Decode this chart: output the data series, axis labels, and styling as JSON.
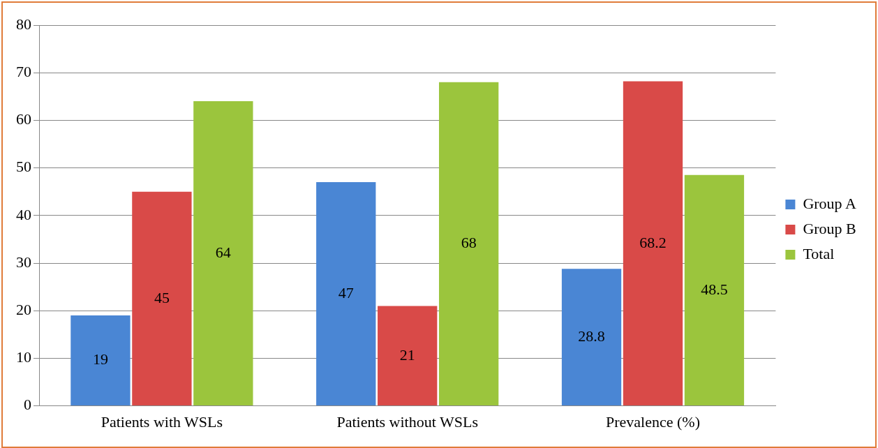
{
  "chart_data": {
    "type": "bar",
    "categories": [
      "Patients with WSLs",
      "Patients without WSLs",
      "Prevalence (%)"
    ],
    "series": [
      {
        "name": "Group A",
        "color": "#4a86d4",
        "values": [
          19,
          47,
          28.8
        ]
      },
      {
        "name": "Group B",
        "color": "#d94a48",
        "values": [
          45,
          21,
          68.2
        ]
      },
      {
        "name": "Total",
        "color": "#9bc53d",
        "values": [
          64,
          68,
          48.5
        ]
      }
    ],
    "ylim": [
      0,
      80
    ],
    "yticks": [
      0,
      10,
      20,
      30,
      40,
      50,
      60,
      70,
      80
    ],
    "grid": "y",
    "legend": "right",
    "data_labels": true
  }
}
